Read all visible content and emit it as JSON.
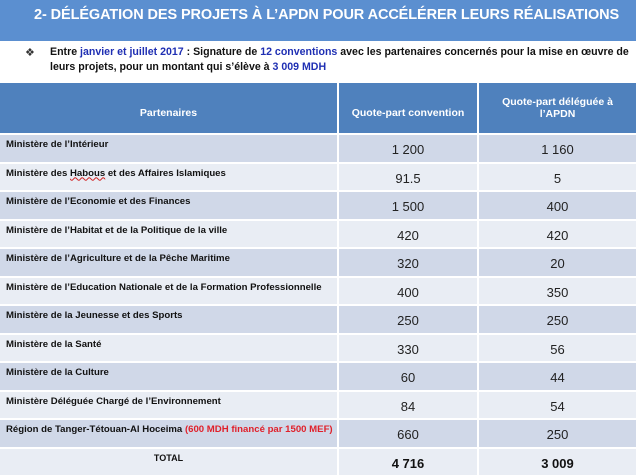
{
  "title": "2- DÉLÉGATION DES PROJETS À L’APDN POUR  ACCÉLÉRER  LEURS RÉALISATIONS",
  "intro": {
    "bullet_icon": "diamond-bullet-icon",
    "part1": "Entre ",
    "period": "janvier et juillet 2017",
    "part2": " : Signature de ",
    "count": "12 conventions",
    "part3": "  avec les partenaires concernés pour la mise en œuvre de leurs projets, pour un montant qui s’élève à ",
    "amount": "3 009 MDH",
    "highlight_color": "#1f2fb3"
  },
  "table": {
    "headers": [
      "Partenaires",
      "Quote-part  convention",
      "Quote-part déléguée à l’APDN"
    ],
    "rows": [
      {
        "partner": "Ministère de l’Intérieur",
        "note": "",
        "convention": "1 200",
        "delegated": "1 160"
      },
      {
        "partner": "Ministère des Habous et des Affaires Islamiques",
        "note": "",
        "convention": "91.5",
        "delegated": "5"
      },
      {
        "partner": "Ministère de l’Economie et des Finances",
        "note": "",
        "convention": "1 500",
        "delegated": "400"
      },
      {
        "partner": "Ministère de l’Habitat et de la Politique de la ville",
        "note": "",
        "convention": "420",
        "delegated": "420"
      },
      {
        "partner": "Ministère de l’Agriculture et de la Pêche Maritime",
        "note": "",
        "convention": "320",
        "delegated": "20"
      },
      {
        "partner": "Ministère de l’Education Nationale et de la Formation Professionnelle",
        "note": "",
        "convention": "400",
        "delegated": "350"
      },
      {
        "partner": "Ministère de la Jeunesse et des Sports",
        "note": "",
        "convention": "250",
        "delegated": "250"
      },
      {
        "partner": "Ministère de la Santé",
        "note": "",
        "convention": "330",
        "delegated": "56"
      },
      {
        "partner": "Ministère de la Culture",
        "note": "",
        "convention": "60",
        "delegated": "44"
      },
      {
        "partner": "Ministère Déléguée Chargé de l’Environnement",
        "note": "",
        "convention": "84",
        "delegated": "54"
      },
      {
        "partner": "Région de Tanger-Tétouan-Al Hoceima ",
        "note": "(600 MDH financé par 1500 MEF)",
        "convention": "660",
        "delegated": "250"
      }
    ],
    "total": {
      "label": "TOTAL",
      "convention": "4 716",
      "delegated": "3 009"
    }
  },
  "colors": {
    "title_band": "#5b8fd0",
    "header": "#4f81bd",
    "row_odd": "#d0d8e8",
    "row_even": "#e9edf4",
    "note_red": "#e0202a"
  }
}
